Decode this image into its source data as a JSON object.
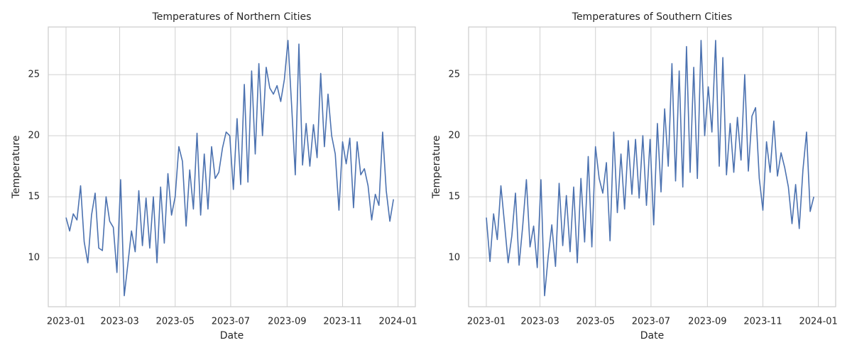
{
  "chart_data": [
    {
      "type": "line",
      "title": "Temperatures of Northern Cities",
      "x_label": "Date",
      "y_label": "Temperature",
      "color": "#4c72b0",
      "grid": true,
      "xlim": [
        -19.5,
        384
      ],
      "ylim": [
        6,
        28.9
      ],
      "xticks": [
        {
          "value": 0,
          "label": "2023-01"
        },
        {
          "value": 59,
          "label": "2023-03"
        },
        {
          "value": 120,
          "label": "2023-05"
        },
        {
          "value": 181,
          "label": "2023-07"
        },
        {
          "value": 243,
          "label": "2023-09"
        },
        {
          "value": 304,
          "label": "2023-11"
        },
        {
          "value": 365,
          "label": "2024-01"
        }
      ],
      "yticks": [
        10,
        15,
        20,
        25
      ],
      "x": [
        0,
        4,
        8,
        12,
        16,
        20,
        24,
        28,
        32,
        36,
        40,
        44,
        48,
        52,
        56,
        60,
        64,
        68,
        72,
        76,
        80,
        84,
        88,
        92,
        96,
        100,
        104,
        108,
        112,
        116,
        120,
        124,
        128,
        132,
        136,
        140,
        144,
        148,
        152,
        156,
        160,
        164,
        168,
        172,
        176,
        180,
        184,
        188,
        192,
        196,
        200,
        204,
        208,
        212,
        216,
        220,
        224,
        228,
        232,
        236,
        240,
        244,
        248,
        252,
        256,
        260,
        264,
        268,
        272,
        276,
        280,
        284,
        288,
        292,
        296,
        300,
        304,
        308,
        312,
        316,
        320,
        324,
        328,
        332,
        336,
        340,
        344,
        348,
        352,
        356,
        360
      ],
      "values": [
        13.3,
        12.2,
        13.6,
        13.1,
        15.9,
        11.3,
        9.6,
        13.5,
        15.3,
        10.8,
        10.6,
        15.0,
        13.0,
        12.5,
        8.8,
        16.4,
        6.9,
        9.5,
        12.2,
        10.5,
        15.5,
        11.0,
        14.9,
        10.8,
        15.0,
        9.6,
        15.8,
        11.2,
        16.9,
        13.5,
        15.0,
        19.1,
        17.9,
        12.6,
        17.2,
        14.0,
        20.2,
        13.5,
        18.5,
        14.0,
        19.1,
        16.5,
        17.0,
        19.0,
        20.3,
        20.0,
        15.6,
        21.4,
        16.0,
        24.2,
        16.2,
        25.3,
        18.5,
        25.9,
        20.0,
        25.6,
        23.9,
        23.4,
        24.1,
        22.8,
        24.6,
        27.8,
        22.5,
        16.8,
        27.5,
        17.6,
        21.0,
        17.5,
        20.9,
        18.2,
        25.1,
        19.1,
        23.4,
        20.0,
        18.5,
        13.9,
        19.5,
        17.7,
        19.8,
        14.1,
        19.5,
        16.8,
        17.3,
        15.9,
        13.1,
        15.2,
        14.3,
        20.3,
        15.5,
        13.0,
        14.8
      ]
    },
    {
      "type": "line",
      "title": "Temperatures of Southern Cities",
      "x_label": "Date",
      "y_label": "Temperature",
      "color": "#4c72b0",
      "grid": true,
      "xlim": [
        -19.5,
        384
      ],
      "ylim": [
        6,
        28.9
      ],
      "xticks": [
        {
          "value": 0,
          "label": "2023-01"
        },
        {
          "value": 59,
          "label": "2023-03"
        },
        {
          "value": 120,
          "label": "2023-05"
        },
        {
          "value": 181,
          "label": "2023-07"
        },
        {
          "value": 243,
          "label": "2023-09"
        },
        {
          "value": 304,
          "label": "2023-11"
        },
        {
          "value": 365,
          "label": "2024-01"
        }
      ],
      "yticks": [
        10,
        15,
        20,
        25
      ],
      "x": [
        0,
        4,
        8,
        12,
        16,
        20,
        24,
        28,
        32,
        36,
        40,
        44,
        48,
        52,
        56,
        60,
        64,
        68,
        72,
        76,
        80,
        84,
        88,
        92,
        96,
        100,
        104,
        108,
        112,
        116,
        120,
        124,
        128,
        132,
        136,
        140,
        144,
        148,
        152,
        156,
        160,
        164,
        168,
        172,
        176,
        180,
        184,
        188,
        192,
        196,
        200,
        204,
        208,
        212,
        216,
        220,
        224,
        228,
        232,
        236,
        240,
        244,
        248,
        252,
        256,
        260,
        264,
        268,
        272,
        276,
        280,
        284,
        288,
        292,
        296,
        300,
        304,
        308,
        312,
        316,
        320,
        324,
        328,
        332,
        336,
        340,
        344,
        348,
        352,
        356,
        360
      ],
      "values": [
        13.3,
        9.7,
        13.6,
        11.5,
        15.9,
        12.8,
        9.6,
        11.8,
        15.3,
        9.4,
        12.6,
        16.4,
        10.9,
        12.6,
        9.2,
        16.4,
        6.9,
        10.1,
        12.7,
        9.3,
        16.1,
        11.0,
        15.1,
        10.5,
        15.8,
        9.6,
        16.5,
        11.3,
        18.3,
        10.9,
        19.1,
        16.5,
        15.3,
        17.8,
        11.4,
        20.3,
        13.7,
        18.5,
        14.0,
        19.6,
        15.2,
        19.7,
        14.9,
        20.0,
        14.3,
        19.7,
        12.7,
        21.0,
        15.4,
        22.2,
        17.5,
        25.9,
        16.3,
        25.3,
        15.8,
        27.3,
        17.0,
        25.6,
        16.5,
        27.8,
        20.0,
        24.0,
        20.3,
        27.8,
        17.5,
        26.4,
        16.8,
        21.0,
        17.0,
        21.5,
        18.0,
        25.0,
        17.1,
        21.6,
        22.3,
        16.5,
        13.9,
        19.5,
        17.0,
        21.2,
        16.7,
        18.6,
        17.4,
        15.8,
        12.8,
        16.0,
        12.4,
        17.2,
        20.3,
        13.8,
        15.0
      ]
    }
  ]
}
